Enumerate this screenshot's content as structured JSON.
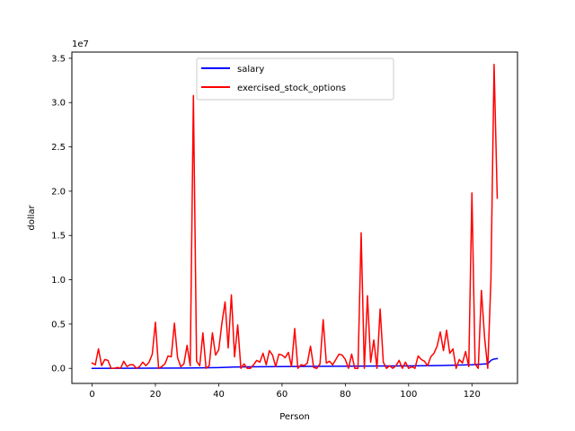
{
  "chart_data": {
    "type": "line",
    "xlabel": "Person",
    "ylabel": "dollar",
    "y_scale_label": "1e7",
    "xlim": [
      -6.4,
      134.4
    ],
    "ylim": [
      -1700000,
      35700000
    ],
    "x_ticks": [
      0,
      20,
      40,
      60,
      80,
      100,
      120
    ],
    "y_ticks": [
      0,
      5000000,
      10000000,
      15000000,
      20000000,
      25000000,
      30000000,
      35000000
    ],
    "y_tick_labels": [
      "0.0",
      "0.5",
      "1.0",
      "1.5",
      "2.0",
      "2.5",
      "3.0",
      "3.5"
    ],
    "grid": false,
    "legend_position": "top-center",
    "colors": {
      "salary": "#0000ff",
      "exercised_stock_options": "#ff0000"
    },
    "series": [
      {
        "name": "salary",
        "x": [
          0,
          10,
          20,
          30,
          40,
          45,
          50,
          60,
          70,
          80,
          90,
          100,
          110,
          120,
          125,
          126,
          127,
          128
        ],
        "values": [
          0,
          10000,
          20000,
          40000,
          90000,
          150000,
          180000,
          200000,
          220000,
          240000,
          260000,
          280000,
          320000,
          400000,
          520000,
          900000,
          1050000,
          1100000
        ]
      },
      {
        "name": "exercised_stock_options",
        "x": [
          0,
          1,
          2,
          3,
          4,
          5,
          6,
          7,
          8,
          9,
          10,
          11,
          12,
          13,
          14,
          15,
          16,
          17,
          18,
          19,
          20,
          21,
          22,
          23,
          24,
          25,
          26,
          27,
          28,
          29,
          30,
          31,
          32,
          33,
          34,
          35,
          36,
          37,
          38,
          39,
          40,
          41,
          42,
          43,
          44,
          45,
          46,
          47,
          48,
          49,
          50,
          51,
          52,
          53,
          54,
          55,
          56,
          57,
          58,
          59,
          60,
          61,
          62,
          63,
          64,
          65,
          66,
          67,
          68,
          69,
          70,
          71,
          72,
          73,
          74,
          75,
          76,
          77,
          78,
          79,
          80,
          81,
          82,
          83,
          84,
          85,
          86,
          87,
          88,
          89,
          90,
          91,
          92,
          93,
          94,
          95,
          96,
          97,
          98,
          99,
          100,
          101,
          102,
          103,
          104,
          105,
          106,
          107,
          108,
          109,
          110,
          111,
          112,
          113,
          114,
          115,
          116,
          117,
          118,
          119,
          120,
          121,
          122,
          123,
          124,
          125,
          126,
          127,
          128
        ],
        "values": [
          600000,
          400000,
          2200000,
          300000,
          1000000,
          900000,
          0,
          0,
          100000,
          0,
          800000,
          200000,
          400000,
          400000,
          0,
          200000,
          700000,
          300000,
          700000,
          1600000,
          5200000,
          0,
          200000,
          500000,
          1400000,
          1300000,
          5100000,
          1200000,
          200000,
          500000,
          2600000,
          300000,
          30800000,
          800000,
          300000,
          4000000,
          0,
          300000,
          4000000,
          1500000,
          2100000,
          5100000,
          7500000,
          2300000,
          8300000,
          1300000,
          4900000,
          0,
          500000,
          0,
          0,
          400000,
          900000,
          700000,
          1700000,
          400000,
          2000000,
          1500000,
          200000,
          1600000,
          1500000,
          1200000,
          1800000,
          200000,
          4500000,
          0,
          400000,
          300000,
          600000,
          2500000,
          100000,
          0,
          500000,
          5500000,
          600000,
          800000,
          400000,
          1000000,
          1600000,
          1500000,
          1000000,
          0,
          1600000,
          0,
          0,
          15300000,
          0,
          8200000,
          700000,
          3200000,
          0,
          6700000,
          700000,
          0,
          300000,
          0,
          300000,
          900000,
          0,
          700000,
          0,
          200000,
          0,
          1400000,
          1000000,
          800000,
          300000,
          1300000,
          1700000,
          2500000,
          4100000,
          2000000,
          4300000,
          1700000,
          2200000,
          0,
          1000000,
          600000,
          1900000,
          200000,
          19800000,
          500000,
          0,
          8800000,
          3500000,
          0,
          10000000,
          34300000,
          19200000
        ]
      }
    ]
  }
}
